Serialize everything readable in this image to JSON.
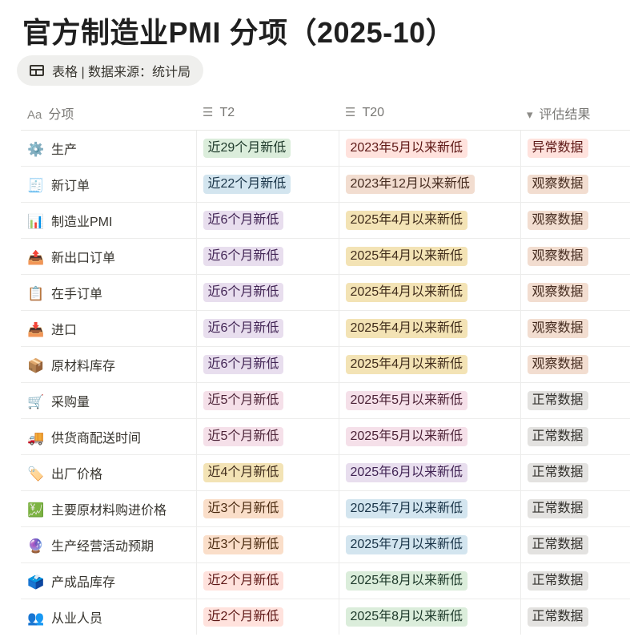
{
  "title": "官方制造业PMI 分项（2025-10）",
  "view_chip": {
    "icon": "table-icon",
    "label": "表格 | 数据来源：统计局"
  },
  "columns": [
    {
      "icon": "Aa",
      "label": "分项"
    },
    {
      "icon": "☰",
      "label": "T2"
    },
    {
      "icon": "☰",
      "label": "T20"
    },
    {
      "icon": "▾",
      "label": "评估结果"
    }
  ],
  "colors": {
    "green": [
      "#dbeddb",
      "#1c3829"
    ],
    "blue": [
      "#d3e5ef",
      "#183347"
    ],
    "purple": [
      "#e8deee",
      "#412454"
    ],
    "yellow": [
      "#f3e3b5",
      "#402c1b"
    ],
    "pink": [
      "#f5e0e9",
      "#4c2337"
    ],
    "orange": [
      "#fadec9",
      "#49290e"
    ],
    "red": [
      "#ffe2dd",
      "#5d1715"
    ],
    "brown": [
      "#f2ddd0",
      "#442a1e"
    ],
    "gray": [
      "#e3e2e0",
      "#32302c"
    ]
  },
  "rows": [
    {
      "icon": "⚙️",
      "name": "生产",
      "t2": "近29个月新低",
      "t2c": "green",
      "t20": "2023年5月以来新低",
      "t20c": "red",
      "res": "异常数据",
      "resc": "red"
    },
    {
      "icon": "🧾",
      "name": "新订单",
      "t2": "近22个月新低",
      "t2c": "blue",
      "t20": "2023年12月以来新低",
      "t20c": "brown",
      "res": "观察数据",
      "resc": "brown"
    },
    {
      "icon": "📊",
      "name": "制造业PMI",
      "t2": "近6个月新低",
      "t2c": "purple",
      "t20": "2025年4月以来新低",
      "t20c": "yellow",
      "res": "观察数据",
      "resc": "brown"
    },
    {
      "icon": "📤",
      "name": "新出口订单",
      "t2": "近6个月新低",
      "t2c": "purple",
      "t20": "2025年4月以来新低",
      "t20c": "yellow",
      "res": "观察数据",
      "resc": "brown"
    },
    {
      "icon": "📋",
      "name": "在手订单",
      "t2": "近6个月新低",
      "t2c": "purple",
      "t20": "2025年4月以来新低",
      "t20c": "yellow",
      "res": "观察数据",
      "resc": "brown"
    },
    {
      "icon": "📥",
      "name": "进口",
      "t2": "近6个月新低",
      "t2c": "purple",
      "t20": "2025年4月以来新低",
      "t20c": "yellow",
      "res": "观察数据",
      "resc": "brown"
    },
    {
      "icon": "📦",
      "name": "原材料库存",
      "t2": "近6个月新低",
      "t2c": "purple",
      "t20": "2025年4月以来新低",
      "t20c": "yellow",
      "res": "观察数据",
      "resc": "brown"
    },
    {
      "icon": "🛒",
      "name": "采购量",
      "t2": "近5个月新低",
      "t2c": "pink",
      "t20": "2025年5月以来新低",
      "t20c": "pink",
      "res": "正常数据",
      "resc": "gray"
    },
    {
      "icon": "🚚",
      "name": "供货商配送时间",
      "t2": "近5个月新低",
      "t2c": "pink",
      "t20": "2025年5月以来新低",
      "t20c": "pink",
      "res": "正常数据",
      "resc": "gray"
    },
    {
      "icon": "🏷️",
      "name": "出厂价格",
      "t2": "近4个月新低",
      "t2c": "yellow",
      "t20": "2025年6月以来新低",
      "t20c": "purple",
      "res": "正常数据",
      "resc": "gray"
    },
    {
      "icon": "💹",
      "name": "主要原材料购进价格",
      "t2": "近3个月新低",
      "t2c": "orange",
      "t20": "2025年7月以来新低",
      "t20c": "blue",
      "res": "正常数据",
      "resc": "gray"
    },
    {
      "icon": "🔮",
      "name": "生产经营活动预期",
      "t2": "近3个月新低",
      "t2c": "orange",
      "t20": "2025年7月以来新低",
      "t20c": "blue",
      "res": "正常数据",
      "resc": "gray"
    },
    {
      "icon": "🗳️",
      "name": "产成品库存",
      "t2": "近2个月新低",
      "t2c": "red",
      "t20": "2025年8月以来新低",
      "t20c": "green",
      "res": "正常数据",
      "resc": "gray"
    },
    {
      "icon": "👥",
      "name": "从业人员",
      "t2": "近2个月新低",
      "t2c": "red",
      "t20": "2025年8月以来新低",
      "t20c": "green",
      "res": "正常数据",
      "resc": "gray"
    }
  ]
}
